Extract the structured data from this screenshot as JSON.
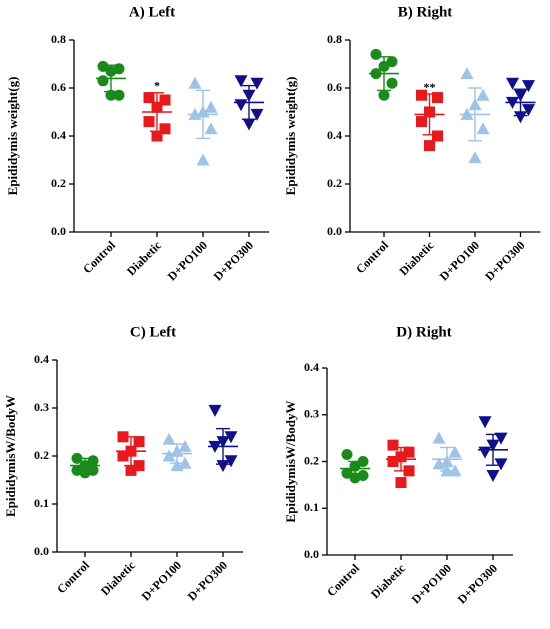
{
  "chart_data": [
    {
      "type": "dotplot",
      "title": "A) Left",
      "y_label": "Epididymis weight(g)",
      "categories": [
        "Control",
        "Diabetic",
        "D+PO100",
        "D+PO300"
      ],
      "colors": [
        "#1a8a1a",
        "#e8191c",
        "#9dc3e6",
        "#10108c"
      ],
      "markers": [
        "circle",
        "square",
        "triangle",
        "triangle-down"
      ],
      "points": [
        [
          0.69,
          0.68,
          0.67,
          0.63,
          0.57,
          0.57
        ],
        [
          0.56,
          0.55,
          0.52,
          0.46,
          0.43,
          0.4
        ],
        [
          0.62,
          0.52,
          0.5,
          0.49,
          0.43,
          0.3
        ],
        [
          0.63,
          0.62,
          0.57,
          0.53,
          0.49,
          0.45
        ]
      ],
      "means": [
        0.64,
        0.5,
        0.49,
        0.54
      ],
      "sd": [
        0.055,
        0.08,
        0.1,
        0.07
      ],
      "annotations": [
        {
          "category": "Diabetic",
          "text": "*"
        }
      ],
      "ylim": [
        0,
        0.8
      ],
      "yticks": [
        {
          "value": 0,
          "label": "0.0"
        },
        0.2,
        0.4,
        0.6,
        0.8
      ]
    },
    {
      "type": "dotplot",
      "title": "B) Right",
      "y_label": "Epididymis weight(g)",
      "categories": [
        "Control",
        "Diabetic",
        "D+PO100",
        "D+PO300"
      ],
      "colors": [
        "#1a8a1a",
        "#e8191c",
        "#9dc3e6",
        "#10108c"
      ],
      "markers": [
        "circle",
        "square",
        "triangle",
        "triangle-down"
      ],
      "points": [
        [
          0.74,
          0.71,
          0.69,
          0.66,
          0.62,
          0.57
        ],
        [
          0.57,
          0.56,
          0.5,
          0.46,
          0.4,
          0.36
        ],
        [
          0.66,
          0.57,
          0.53,
          0.49,
          0.43,
          0.31
        ],
        [
          0.62,
          0.61,
          0.57,
          0.54,
          0.51,
          0.48
        ]
      ],
      "means": [
        0.66,
        0.49,
        0.49,
        0.54
      ],
      "sd": [
        0.07,
        0.085,
        0.11,
        0.055
      ],
      "annotations": [
        {
          "category": "Diabetic",
          "text": "**"
        }
      ],
      "ylim": [
        0,
        0.8
      ],
      "yticks": [
        {
          "value": 0,
          "label": "0.0"
        },
        0.2,
        0.4,
        0.6,
        0.8
      ]
    },
    {
      "type": "dotplot",
      "title": "C) Left",
      "y_label": "EpididymisW/BodyW",
      "categories": [
        "Control",
        "Diabetic",
        "D+PO100",
        "D+PO300"
      ],
      "colors": [
        "#1a8a1a",
        "#e8191c",
        "#9dc3e6",
        "#10108c"
      ],
      "markers": [
        "circle",
        "square",
        "triangle",
        "triangle-down"
      ],
      "points": [
        [
          0.195,
          0.19,
          0.18,
          0.17,
          0.17,
          0.165
        ],
        [
          0.24,
          0.23,
          0.21,
          0.2,
          0.18,
          0.17
        ],
        [
          0.235,
          0.22,
          0.21,
          0.2,
          0.185,
          0.18
        ],
        [
          0.295,
          0.24,
          0.23,
          0.22,
          0.19,
          0.18
        ]
      ],
      "means": [
        0.18,
        0.21,
        0.205,
        0.22
      ],
      "sd": [
        0.015,
        0.03,
        0.02,
        0.037
      ],
      "ylim": [
        0,
        0.4
      ],
      "yticks": [
        {
          "value": 0,
          "label": "0.0"
        },
        0.1,
        0.2,
        0.3,
        0.4
      ]
    },
    {
      "type": "dotplot",
      "title": "D) Right",
      "y_label": "EpididymisW/BodyW",
      "categories": [
        "Control",
        "Diabetic",
        "D+PO100",
        "D+PO300"
      ],
      "colors": [
        "#1a8a1a",
        "#e8191c",
        "#9dc3e6",
        "#10108c"
      ],
      "markers": [
        "circle",
        "square",
        "triangle",
        "triangle-down"
      ],
      "points": [
        [
          0.215,
          0.2,
          0.19,
          0.175,
          0.17,
          0.165
        ],
        [
          0.235,
          0.22,
          0.21,
          0.2,
          0.18,
          0.155
        ],
        [
          0.25,
          0.22,
          0.2,
          0.195,
          0.18,
          0.18
        ],
        [
          0.285,
          0.25,
          0.235,
          0.22,
          0.195,
          0.17
        ]
      ],
      "means": [
        0.185,
        0.205,
        0.205,
        0.225
      ],
      "sd": [
        0.015,
        0.025,
        0.025,
        0.033
      ],
      "ylim": [
        0,
        0.4
      ],
      "yticks": [
        {
          "value": 0,
          "label": "0.0"
        },
        0.1,
        0.2,
        0.3,
        0.4
      ]
    }
  ]
}
